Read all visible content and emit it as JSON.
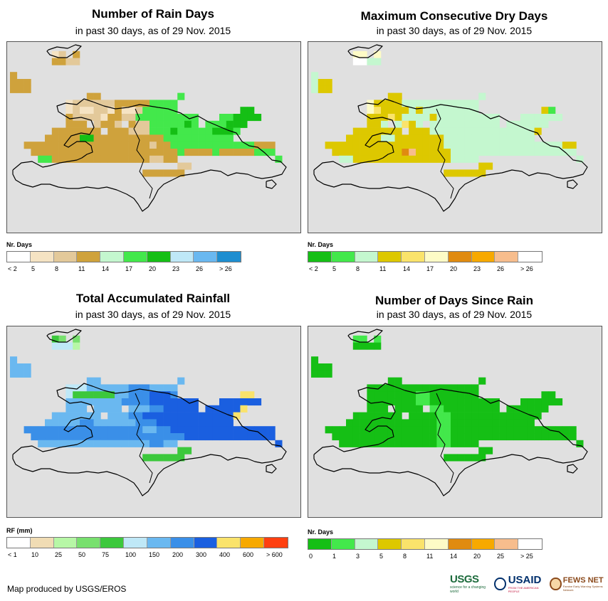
{
  "footer": {
    "credit": "Map produced by USGS/EROS"
  },
  "logos": {
    "usgs": {
      "word": "USGS",
      "tagline": "science for a changing world"
    },
    "usaid": {
      "word": "USAID",
      "tagline": "FROM THE AMERICAN PEOPLE"
    },
    "fews": {
      "word": "FEWS NET",
      "tagline": "Famine Early Warning Systems Network"
    }
  },
  "colors": {
    "map_background": "#e0e0e0",
    "boundary_line": "#000000"
  },
  "chart_data": [
    {
      "type": "heatmap",
      "title": "Number of Rain Days",
      "subtitle": "in past 30 days, as of 29 Nov. 2015",
      "legend": {
        "title": "Nr. Days",
        "tick_labels": [
          "< 2",
          "5",
          "8",
          "11",
          "14",
          "17",
          "20",
          "23",
          "26",
          "> 26"
        ],
        "colors": [
          "#ffffff",
          "#f5e3c3",
          "#e3c99a",
          "#cfa23c",
          "#c4f7cf",
          "#43e84b",
          "#15bf15",
          "#bfe8f7",
          "#6ab8f0",
          "#1e8ed0"
        ]
      },
      "rows": [
        "..........................................",
        "......12.3................................",
        "......3322................................",
        "..........................................",
        "3.........................................",
        "333.......................................",
        "333.......................................",
        "...........33...........5.................",
        "........1222222333335555..................",
        "........1211221311255555.........66.......",
        "........3222213322555555555...556666......",
        "........333.2332.3225555565.555666........",
        "......3333333.3332225556555556665.........",
        ".....333336633333333335555555555..........",
        "..333333333333333333233555555555555333....",
        "...33333333333333333333353333533333555....",
        "....55333333333333332233..............5...",
        "........................22................",
        "...................333333.................",
        "..........................................",
        ".........................................."
      ]
    },
    {
      "type": "heatmap",
      "title": "Maximum Consecutive Dry Days",
      "subtitle": "in past 30 days, as of 29 Nov. 2015",
      "legend": {
        "title": "Nr. Days",
        "tick_labels": [
          "< 2",
          "5",
          "8",
          "11",
          "14",
          "17",
          "20",
          "23",
          "26",
          "> 26"
        ],
        "colors": [
          "#15bf15",
          "#43e84b",
          "#c4f7cf",
          "#ddc800",
          "#fae36b",
          "#fdfbc6",
          "#e08b10",
          "#f7a900",
          "#f7bd8d",
          "#ffffff"
        ]
      },
      "rows": [
        "..........................................",
        "......55.5................................",
        "......9922................................",
        "..........................................",
        "2.........................................",
        "233.......................................",
        "233.......................................",
        "...........33...........2.................",
        "........5333322222222222..................",
        "........5433332322222222.........31.......",
        "........3334322223222222222...222222......",
        "........332.2432.2222222222.222222........",
        "......3333333.3332222222222222223.........",
        ".....333332233333332222222222222..........",
        "..333333333333333332222222222222222233....",
        "...33333333336833333222222222222222222....",
        "....22333333333333332222..............2...",
        "........................33................",
        "...................333333.................",
        "..........................................",
        ".........................................."
      ]
    },
    {
      "type": "heatmap",
      "title": "Total Accumulated Rainfall",
      "subtitle": "in past 30 days, as of 29 Nov. 2015",
      "legend": {
        "title": "RF (mm)",
        "tick_labels": [
          "< 1",
          "10",
          "25",
          "50",
          "75",
          "100",
          "150",
          "200",
          "300",
          "400",
          "600",
          "> 600"
        ],
        "colors": [
          "#ffffff",
          "#f0dcb4",
          "#b7f7a6",
          "#78e06e",
          "#3cc83c",
          "#bfe8f7",
          "#6ab8f0",
          "#3a8fe8",
          "#1a5fe0",
          "#fae36b",
          "#f7a900",
          "#ff4010"
        ]
      },
      "rows": [
        "..........................................",
        "......43.3................................",
        "......5552................................",
        "..........................................",
        "6.........................................",
        "666.......................................",
        "666.......................................",
        "...........66...........6.................",
        "........5556666667776666..................",
        "........5444444667778887.........99.......",
        "........6666666677778888888...888888......",
        "........666.6666.6667788888.888889........",
        "......6666666.6667788888888888889.........",
        ".....666667766666677788888888888..........",
        "..777777777777777776677888888888888888....",
        "...77777777777777777777778888888888888....",
        "....66666666666666667766..............8...",
        "........................44................",
        "...................444444.................",
        "..........................................",
        ".........................................."
      ]
    },
    {
      "type": "heatmap",
      "title": "Number of Days Since Rain",
      "subtitle": "in past 30 days, as of 29 Nov. 2015",
      "legend": {
        "title": "Nr. Days",
        "tick_labels": [
          "0",
          "1",
          "3",
          "5",
          "8",
          "11",
          "14",
          "20",
          "25",
          "> 25"
        ],
        "colors": [
          "#15bf15",
          "#43e84b",
          "#c4f7cf",
          "#ddc800",
          "#fae36b",
          "#fdfbc6",
          "#e08b10",
          "#f7a900",
          "#f7bd8d",
          "#ffffff"
        ]
      },
      "rows": [
        "..........................................",
        "......11.1................................",
        "......0000................................",
        "..........................................",
        "0.........................................",
        "000.......................................",
        "000.......................................",
        "...........00...........0.................",
        "........0000000000000000..................",
        "........0000000110000000.........00.......",
        "........0000000110000000000...000000......",
        "........000.0000.1100000000.000000........",
        "......0000000.0000110000000000000.........",
        ".....000000000000011000000000000..........",
        "..000000000000000011000000000000000000....",
        "...00000000000000011000000000000000000....",
        "....00000000000000110000..............0...",
        "........................00................",
        "...................000000.................",
        "..........................................",
        ".........................................."
      ]
    }
  ]
}
